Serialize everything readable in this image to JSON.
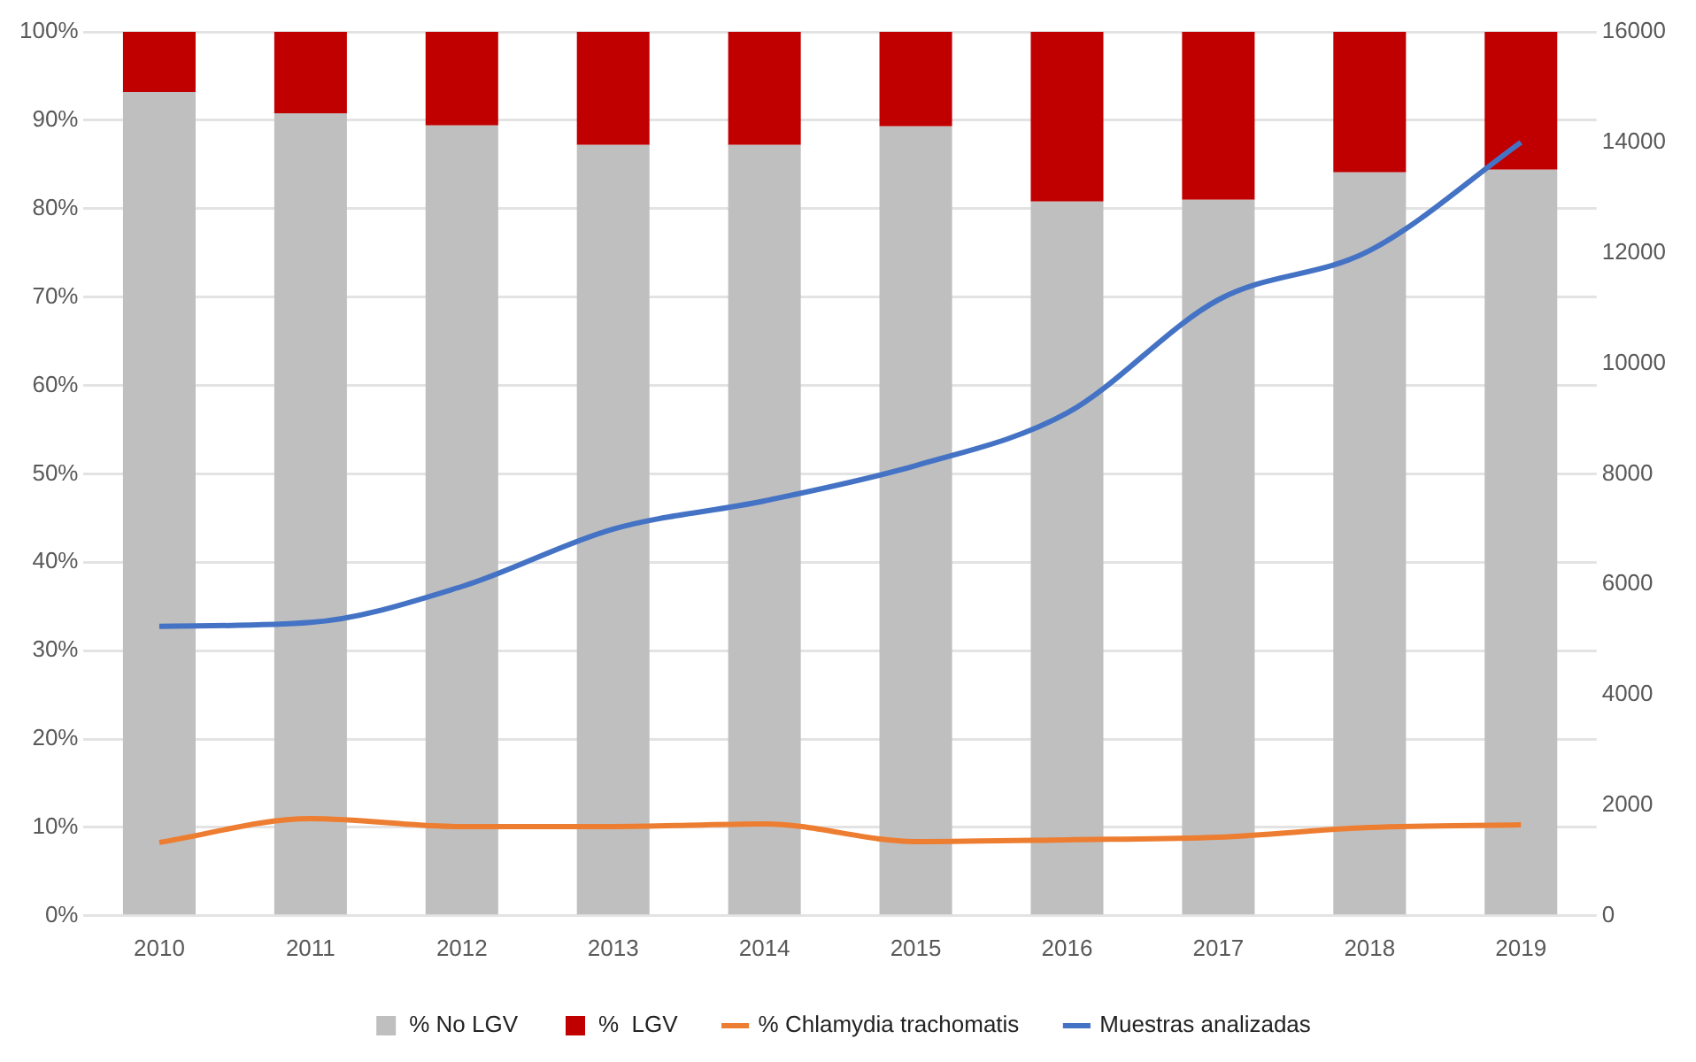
{
  "chart_data": {
    "type": "bar",
    "stacked": true,
    "categories": [
      "2010",
      "2011",
      "2012",
      "2013",
      "2014",
      "2015",
      "2016",
      "2017",
      "2018",
      "2019"
    ],
    "series": [
      {
        "name": "% No LGV",
        "color": "#bfbfbf",
        "values": [
          93.2,
          90.8,
          89.4,
          87.2,
          87.2,
          89.3,
          80.8,
          81.0,
          84.1,
          84.4
        ]
      },
      {
        "name": "%  LGV",
        "color": "#c00000",
        "values": [
          6.8,
          9.2,
          10.6,
          12.8,
          12.8,
          10.7,
          19.2,
          19.0,
          15.9,
          15.6
        ]
      },
      {
        "name": "% Chlamydia trachomatis",
        "type": "line",
        "color": "#ed7d31",
        "values": [
          8.3,
          11.0,
          10.1,
          10.1,
          10.4,
          8.4,
          8.6,
          8.9,
          10.0,
          10.3
        ]
      },
      {
        "name": "Muestras analizadas",
        "type": "line",
        "axis": "y2",
        "color": "#4472c4",
        "values": [
          5240,
          5310,
          5960,
          7000,
          7510,
          8150,
          9100,
          11150,
          12040,
          14000
        ]
      }
    ],
    "ylim": [
      0,
      100
    ],
    "yticks": [
      {
        "value": 0,
        "label": "0%"
      },
      {
        "value": 10,
        "label": "10%"
      },
      {
        "value": 20,
        "label": "20%"
      },
      {
        "value": 30,
        "label": "30%"
      },
      {
        "value": 40,
        "label": "40%"
      },
      {
        "value": 50,
        "label": "50%"
      },
      {
        "value": 60,
        "label": "60%"
      },
      {
        "value": 70,
        "label": "70%"
      },
      {
        "value": 80,
        "label": "80%"
      },
      {
        "value": 90,
        "label": "90%"
      },
      {
        "value": 100,
        "label": "100%"
      }
    ],
    "y2lim": [
      0,
      16000
    ],
    "y2ticks": [
      0,
      2000,
      4000,
      6000,
      8000,
      10000,
      12000,
      14000,
      16000
    ],
    "grid": "y",
    "legend": "bottom",
    "marker": "none",
    "line_style": "solid"
  }
}
